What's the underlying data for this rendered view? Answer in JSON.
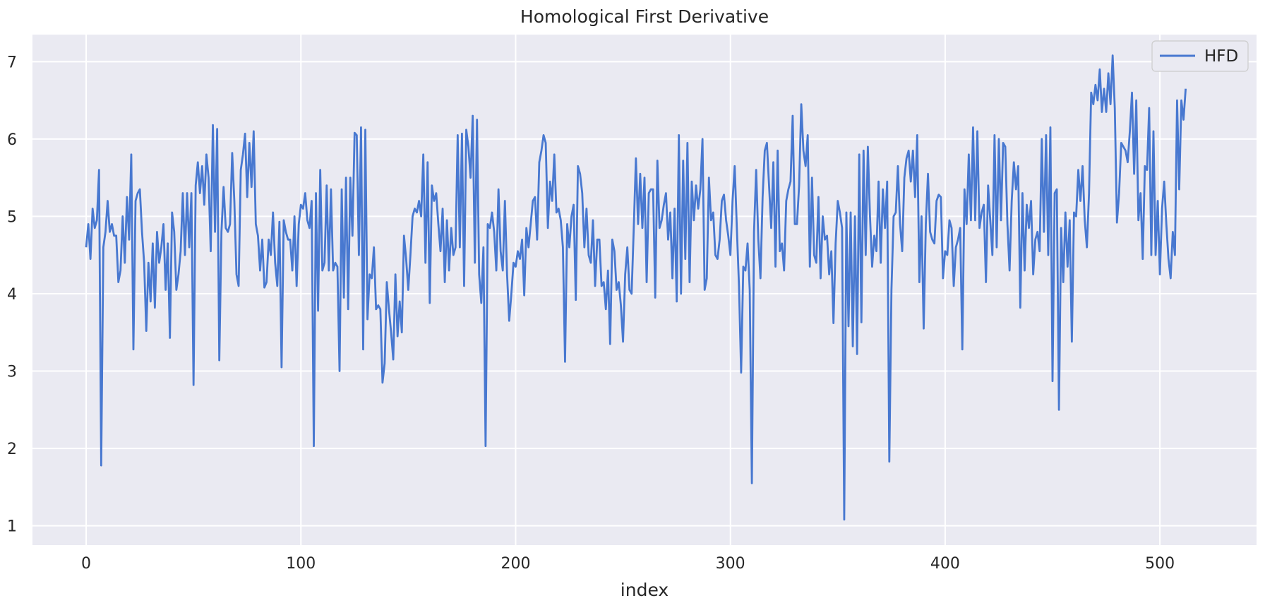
{
  "chart_data": {
    "type": "line",
    "title": "Homological First Derivative",
    "xlabel": "index",
    "ylabel": "",
    "xlim": [
      -25,
      545
    ],
    "ylim": [
      0.75,
      7.35
    ],
    "xticks": [
      0,
      100,
      200,
      300,
      400,
      500
    ],
    "yticks": [
      1,
      2,
      3,
      4,
      5,
      6,
      7
    ],
    "grid": true,
    "legend_position": "top-right",
    "series": [
      {
        "name": "HFD",
        "color": "#4878d0",
        "x_start": 0,
        "x_step": 1,
        "values": [
          4.6,
          4.9,
          4.45,
          5.1,
          4.85,
          4.95,
          5.6,
          1.78,
          4.6,
          4.8,
          5.2,
          4.8,
          4.9,
          4.75,
          4.75,
          4.15,
          4.3,
          5.0,
          4.4,
          5.25,
          4.7,
          5.8,
          3.28,
          5.2,
          5.3,
          5.35,
          4.8,
          4.4,
          3.52,
          4.4,
          3.9,
          4.65,
          3.82,
          4.8,
          4.4,
          4.6,
          4.9,
          4.05,
          4.65,
          3.43,
          5.05,
          4.8,
          4.05,
          4.25,
          4.55,
          5.3,
          4.5,
          5.3,
          4.6,
          5.3,
          2.82,
          5.4,
          5.7,
          5.3,
          5.65,
          5.15,
          5.8,
          5.5,
          4.55,
          6.18,
          4.8,
          6.13,
          3.14,
          4.8,
          5.38,
          4.85,
          4.8,
          4.9,
          5.82,
          5.2,
          4.25,
          4.1,
          5.6,
          5.8,
          6.07,
          5.25,
          5.95,
          5.38,
          6.1,
          4.9,
          4.75,
          4.3,
          4.7,
          4.08,
          4.15,
          4.7,
          4.5,
          5.05,
          4.4,
          4.1,
          4.93,
          3.05,
          4.95,
          4.8,
          4.7,
          4.7,
          4.3,
          5.0,
          4.1,
          4.9,
          5.15,
          5.1,
          5.3,
          4.95,
          4.85,
          5.2,
          2.03,
          5.3,
          3.78,
          5.6,
          4.3,
          4.4,
          5.4,
          4.3,
          5.35,
          4.3,
          4.4,
          4.35,
          3.0,
          5.35,
          3.95,
          5.5,
          3.8,
          5.5,
          4.75,
          6.08,
          6.05,
          4.5,
          6.15,
          3.28,
          6.12,
          3.67,
          4.25,
          4.2,
          4.6,
          3.8,
          3.85,
          3.8,
          2.85,
          3.1,
          4.15,
          3.8,
          3.5,
          3.15,
          4.25,
          3.45,
          3.9,
          3.5,
          4.75,
          4.45,
          4.05,
          4.5,
          5.0,
          5.1,
          5.05,
          5.2,
          5.0,
          5.8,
          4.4,
          5.7,
          3.88,
          5.4,
          5.2,
          5.3,
          4.9,
          4.55,
          5.1,
          4.15,
          4.95,
          4.3,
          4.85,
          4.5,
          4.6,
          6.05,
          4.6,
          6.07,
          4.1,
          6.12,
          5.9,
          5.5,
          6.3,
          4.4,
          6.25,
          4.25,
          3.88,
          4.6,
          2.03,
          4.9,
          4.85,
          5.05,
          4.8,
          4.3,
          5.35,
          4.55,
          4.3,
          5.2,
          4.25,
          3.65,
          4.0,
          4.4,
          4.35,
          4.55,
          4.45,
          4.7,
          3.98,
          4.85,
          4.6,
          4.9,
          5.2,
          5.25,
          4.7,
          5.7,
          5.85,
          6.05,
          5.95,
          4.85,
          5.45,
          5.2,
          5.8,
          5.05,
          5.1,
          4.95,
          4.6,
          3.12,
          4.9,
          4.6,
          5.0,
          5.15,
          3.92,
          5.65,
          5.55,
          5.3,
          4.6,
          5.1,
          4.5,
          4.4,
          4.95,
          4.1,
          4.7,
          4.7,
          4.1,
          4.15,
          3.8,
          4.3,
          3.35,
          4.7,
          4.55,
          4.05,
          4.15,
          3.85,
          3.38,
          4.25,
          4.6,
          4.05,
          4.0,
          4.85,
          5.75,
          4.9,
          5.55,
          4.85,
          5.5,
          4.15,
          5.3,
          5.35,
          5.35,
          3.95,
          5.72,
          4.85,
          4.95,
          5.15,
          5.3,
          4.7,
          5.05,
          4.2,
          5.1,
          3.9,
          6.05,
          4.0,
          5.72,
          4.45,
          5.95,
          4.15,
          5.45,
          4.95,
          5.4,
          5.1,
          5.35,
          6.0,
          4.05,
          4.2,
          5.5,
          4.95,
          5.05,
          4.5,
          4.45,
          4.7,
          5.2,
          5.28,
          4.95,
          4.75,
          4.5,
          5.2,
          5.65,
          4.85,
          4.1,
          2.98,
          4.35,
          4.3,
          4.65,
          4.05,
          1.55,
          4.8,
          5.6,
          4.7,
          4.2,
          5.25,
          5.85,
          5.95,
          5.4,
          4.85,
          5.7,
          4.35,
          5.85,
          4.55,
          4.65,
          4.3,
          5.2,
          5.35,
          5.45,
          6.3,
          4.9,
          4.9,
          5.4,
          6.45,
          5.85,
          5.65,
          6.05,
          4.35,
          5.5,
          4.5,
          4.4,
          5.25,
          4.2,
          5.0,
          4.7,
          4.75,
          4.25,
          4.55,
          3.62,
          4.65,
          5.2,
          5.05,
          4.85,
          1.08,
          5.05,
          3.58,
          5.05,
          3.32,
          5.0,
          3.22,
          5.8,
          3.63,
          5.85,
          4.5,
          5.9,
          5.0,
          4.35,
          4.75,
          4.55,
          5.45,
          4.4,
          5.35,
          4.85,
          5.45,
          1.83,
          4.05,
          5.0,
          5.05,
          5.65,
          4.9,
          4.55,
          5.5,
          5.75,
          5.85,
          5.45,
          5.85,
          5.25,
          6.05,
          4.15,
          5.0,
          3.55,
          4.9,
          5.55,
          4.8,
          4.7,
          4.65,
          5.2,
          5.28,
          5.25,
          4.2,
          4.55,
          4.5,
          4.95,
          4.85,
          4.1,
          4.6,
          4.7,
          4.85,
          3.28,
          5.35,
          4.9,
          5.8,
          4.95,
          6.15,
          4.95,
          6.1,
          4.85,
          5.05,
          5.15,
          4.15,
          5.4,
          4.95,
          4.5,
          6.05,
          4.6,
          6.0,
          4.95,
          5.95,
          5.9,
          4.9,
          4.3,
          5.2,
          5.7,
          5.35,
          5.65,
          3.82,
          5.3,
          4.3,
          5.15,
          4.85,
          5.2,
          4.25,
          4.7,
          4.8,
          4.55,
          6.0,
          4.8,
          6.05,
          4.5,
          6.15,
          2.87,
          5.3,
          5.35,
          2.5,
          4.85,
          4.15,
          5.05,
          4.35,
          4.95,
          3.38,
          5.05,
          5.0,
          5.6,
          5.2,
          5.65,
          4.95,
          4.6,
          5.3,
          6.6,
          6.45,
          6.7,
          6.5,
          6.9,
          6.35,
          6.65,
          6.35,
          6.85,
          6.45,
          7.08,
          6.4,
          4.92,
          5.3,
          5.95,
          5.9,
          5.85,
          5.7,
          6.1,
          6.6,
          5.55,
          6.5,
          4.95,
          5.3,
          4.45,
          5.65,
          5.6,
          6.4,
          4.5,
          6.1,
          4.5,
          5.2,
          4.25,
          5.1,
          5.45,
          4.9,
          4.45,
          4.2,
          4.8,
          4.5,
          6.5,
          5.35,
          6.5,
          6.25,
          6.65
        ]
      }
    ]
  }
}
